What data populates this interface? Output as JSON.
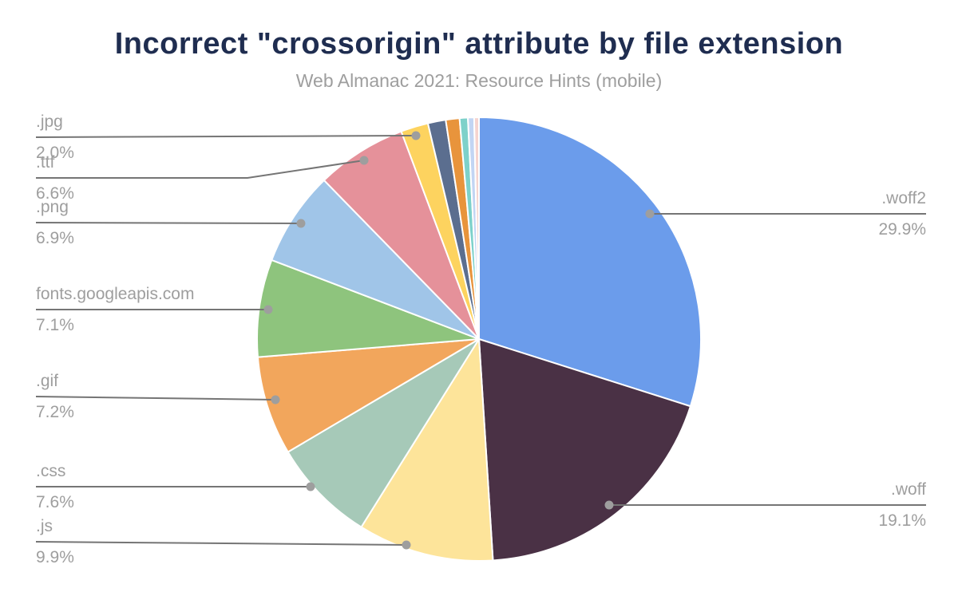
{
  "chart_data": {
    "type": "pie",
    "title": "Incorrect \"crossorigin\" attribute by file extension",
    "subtitle": "Web Almanac 2021: Resource Hints (mobile)",
    "legend_position": "none",
    "labels_style": "callout leader lines with gray dots, name above line and percent below",
    "start_angle_deg": 0,
    "direction": "clockwise",
    "segments": [
      {
        "label": ".woff2",
        "value": 29.9,
        "pct": "29.9%",
        "color": "#6b9ceb",
        "label_side": "right"
      },
      {
        "label": ".woff",
        "value": 19.1,
        "pct": "19.1%",
        "color": "#4a3145",
        "label_side": "right"
      },
      {
        "label": ".js",
        "value": 9.9,
        "pct": "9.9%",
        "color": "#fde49a",
        "label_side": "left"
      },
      {
        "label": ".css",
        "value": 7.6,
        "pct": "7.6%",
        "color": "#a6c9b8",
        "label_side": "left"
      },
      {
        "label": ".gif",
        "value": 7.2,
        "pct": "7.2%",
        "color": "#f2a65c",
        "label_side": "left"
      },
      {
        "label": "fonts.googleapis.com",
        "value": 7.1,
        "pct": "7.1%",
        "color": "#8ec47d",
        "label_side": "left"
      },
      {
        "label": ".png",
        "value": 6.9,
        "pct": "6.9%",
        "color": "#a0c5e8",
        "label_side": "left"
      },
      {
        "label": ".ttf",
        "value": 6.6,
        "pct": "6.6%",
        "color": "#e5919a",
        "label_side": "left"
      },
      {
        "label": ".jpg",
        "value": 2.0,
        "pct": "2.0%",
        "color": "#fdd35f",
        "label_side": "left"
      },
      {
        "label": "",
        "value": 1.3,
        "pct": "",
        "color": "#5b6e8f",
        "label_side": "none"
      },
      {
        "label": "",
        "value": 1.0,
        "pct": "",
        "color": "#e8943c",
        "label_side": "none"
      },
      {
        "label": "",
        "value": 0.6,
        "pct": "",
        "color": "#7dd1ca",
        "label_side": "none"
      },
      {
        "label": "",
        "value": 0.45,
        "pct": "",
        "color": "#c2d5f3",
        "label_side": "none"
      },
      {
        "label": "",
        "value": 0.35,
        "pct": "",
        "color": "#f5d4cf",
        "label_side": "none"
      }
    ],
    "colors": {
      "title": "#1f2d50",
      "subtitle": "#9e9e9e",
      "label_text": "#9e9e9e",
      "leader_line": "#757575",
      "slice_gap": "#ffffff",
      "background": "#ffffff"
    }
  }
}
